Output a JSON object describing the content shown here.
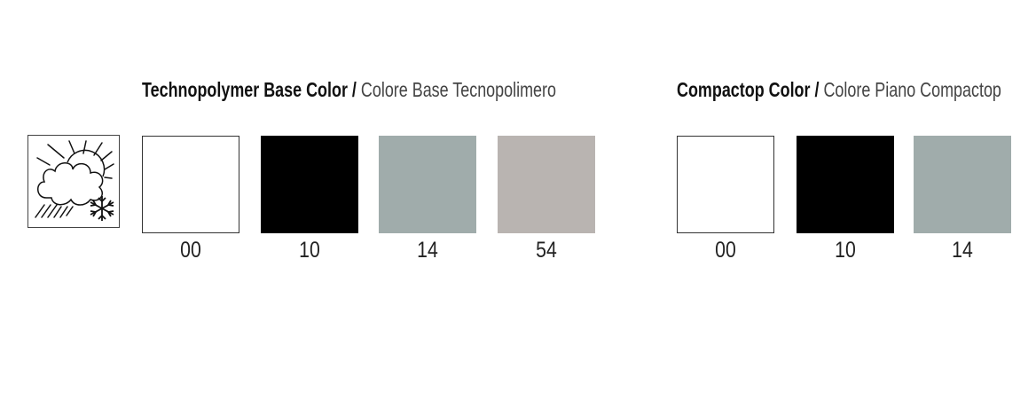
{
  "groups": [
    {
      "title_en": "Technopolymer Base Color",
      "separator": "/",
      "title_it": "Colore Base Tecnopolimero",
      "swatches": [
        {
          "code": "00",
          "color": "#ffffff"
        },
        {
          "code": "10",
          "color": "#000000"
        },
        {
          "code": "14",
          "color": "#a0acab"
        },
        {
          "code": "54",
          "color": "#b9b4b1"
        }
      ]
    },
    {
      "title_en": "Compactop Color",
      "separator": "/",
      "title_it": "Colore Piano Compactop",
      "swatches": [
        {
          "code": "00",
          "color": "#ffffff"
        },
        {
          "code": "10",
          "color": "#000000"
        },
        {
          "code": "14",
          "color": "#a0acab"
        }
      ]
    }
  ],
  "icon": "weather-resistant-sun-cloud-snow-icon"
}
